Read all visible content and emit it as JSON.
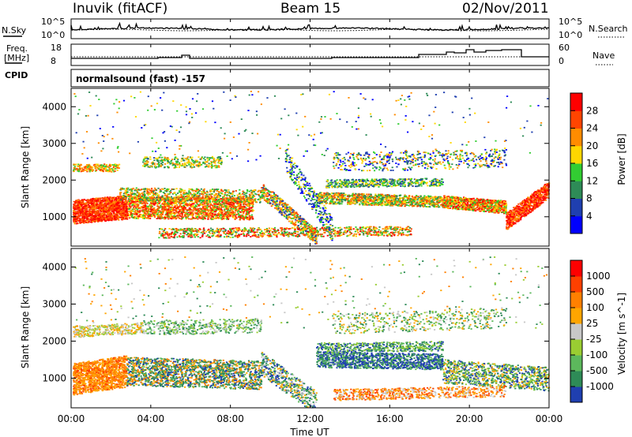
{
  "header": {
    "station": "Inuvik (fitACF)",
    "beam": "Beam 15",
    "date": "02/Nov/2011"
  },
  "chart_data": [
    {
      "type": "line",
      "panel": "noise",
      "left_label": "N.Sky",
      "right_label": "N.Search",
      "left_ticks": [
        "10^5",
        "10^0"
      ],
      "right_ticks": [
        "10^5",
        "10^0"
      ],
      "y_scale": "log"
    },
    {
      "type": "line",
      "panel": "frequency-nave",
      "left_label_1": "Freq.",
      "left_label_2": "[MHz]",
      "right_label": "Nave",
      "left_ticks": [
        "18",
        "8"
      ],
      "right_ticks": [
        "60",
        "0"
      ],
      "cpid_label": "CPID",
      "cpid_text": "normalsound (fast) -157"
    },
    {
      "type": "heatmap",
      "panel": "power",
      "ylabel": "Slant Range [km]",
      "yticks": [
        "1000",
        "2000",
        "3000",
        "4000"
      ],
      "ylim": [
        200,
        4500
      ],
      "colorbar_label": "Power [dB]",
      "colorbar_ticks": [
        "28",
        "24",
        "20",
        "16",
        "12",
        "8",
        "4"
      ],
      "colors": [
        "#0000ff",
        "#1f3fb0",
        "#2e8b57",
        "#32cd32",
        "#ffd700",
        "#ff8c00",
        "#ff4500",
        "#ff0000"
      ]
    },
    {
      "type": "heatmap",
      "panel": "velocity",
      "ylabel": "Slant Range [km]",
      "yticks": [
        "1000",
        "2000",
        "3000",
        "4000"
      ],
      "ylim": [
        200,
        4500
      ],
      "colorbar_label": "Velocity [m s^-1]",
      "colorbar_ticks": [
        "1000",
        "500",
        "100",
        "25",
        "-25",
        "-100",
        "-500",
        "-1000"
      ],
      "colors": [
        "#1f3fb0",
        "#2e8b57",
        "#5cb85c",
        "#9acd32",
        "#c8c8c8",
        "#ffa500",
        "#ff8000",
        "#ff4000",
        "#ff0000"
      ]
    }
  ],
  "xaxis": {
    "ticks": [
      "00:00",
      "04:00",
      "08:00",
      "12:00",
      "16:00",
      "20:00",
      "00:00"
    ],
    "label": "Time UT"
  }
}
